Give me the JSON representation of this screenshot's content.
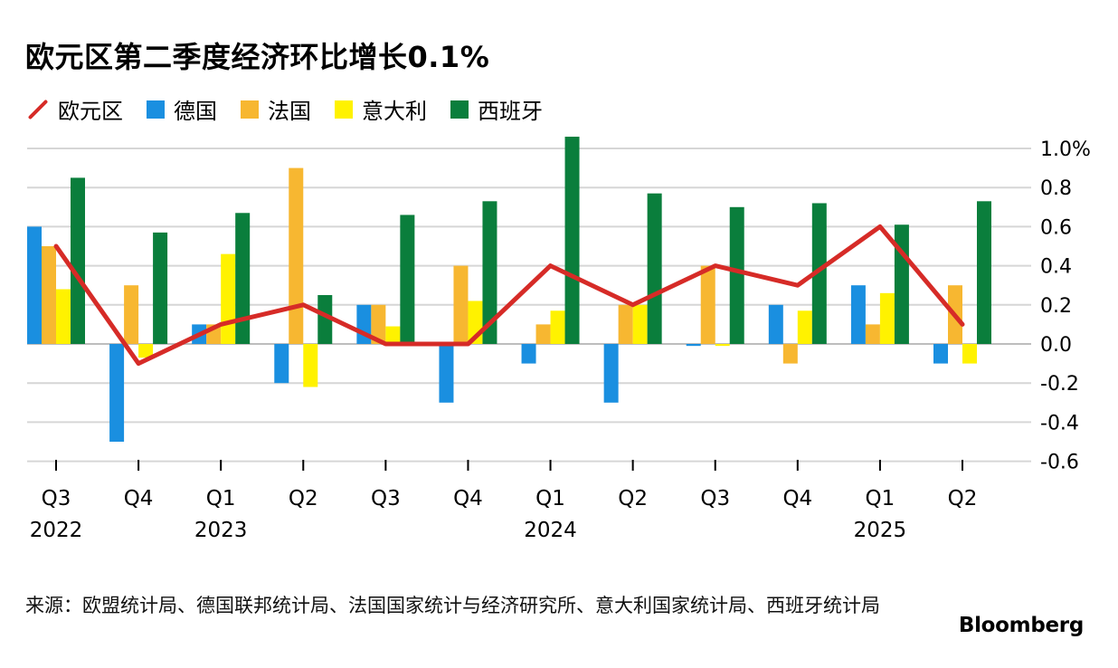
{
  "title": "欧元区第二季度经济环比增长0.1%",
  "source": "来源：欧盟统计局、德国联邦统计局、法国国家统计与经济研究所、意大利国家统计局、西班牙统计局",
  "brand": "Bloomberg",
  "colors": {
    "euro": "#d62b27",
    "germany": "#1a8fe0",
    "france": "#f7b731",
    "italy": "#fff200",
    "spain": "#0a7e3c",
    "grid": "#d6d6d6"
  },
  "chart_data": {
    "type": "bar",
    "categories": [
      "Q3 2022",
      "Q4 2022",
      "Q1 2023",
      "Q2 2023",
      "Q3 2023",
      "Q4 2023",
      "Q1 2024",
      "Q2 2024",
      "Q3 2024",
      "Q4 2024",
      "Q1 2025",
      "Q2 2025"
    ],
    "tick_quarters": [
      "Q3",
      "Q4",
      "Q1",
      "Q2",
      "Q3",
      "Q4",
      "Q1",
      "Q2",
      "Q3",
      "Q4",
      "Q1",
      "Q2"
    ],
    "year_labels": [
      {
        "index": 0,
        "label": "2022"
      },
      {
        "index": 2,
        "label": "2023"
      },
      {
        "index": 6,
        "label": "2024"
      },
      {
        "index": 10,
        "label": "2025"
      }
    ],
    "y_ticks": [
      "1.0%",
      "0.8",
      "0.6",
      "0.4",
      "0.2",
      "0.0",
      "-0.2",
      "-0.4",
      "-0.6"
    ],
    "y_tick_values": [
      1.0,
      0.8,
      0.6,
      0.4,
      0.2,
      0.0,
      -0.2,
      -0.4,
      -0.6
    ],
    "ylim": [
      -0.6,
      1.0
    ],
    "legend_position": "top-left",
    "grid": true,
    "line_series": {
      "name": "欧元区",
      "values": [
        0.5,
        -0.1,
        0.1,
        0.2,
        0.0,
        0.0,
        0.4,
        0.2,
        0.4,
        0.3,
        0.6,
        0.1
      ]
    },
    "series": [
      {
        "name": "德国",
        "values": [
          0.6,
          -0.5,
          0.1,
          -0.2,
          0.2,
          -0.3,
          -0.1,
          -0.3,
          -0.01,
          0.2,
          0.3,
          -0.1
        ]
      },
      {
        "name": "法国",
        "values": [
          0.5,
          0.3,
          0.1,
          0.9,
          0.2,
          0.4,
          0.1,
          0.2,
          0.4,
          -0.1,
          0.1,
          0.3
        ]
      },
      {
        "name": "意大利",
        "values": [
          0.28,
          -0.07,
          0.46,
          -0.22,
          0.09,
          0.22,
          0.17,
          0.2,
          -0.01,
          0.17,
          0.26,
          -0.1
        ]
      },
      {
        "name": "西班牙",
        "values": [
          0.85,
          0.57,
          0.67,
          0.25,
          0.66,
          0.73,
          1.06,
          0.77,
          0.7,
          0.72,
          0.61,
          0.73
        ]
      }
    ]
  }
}
